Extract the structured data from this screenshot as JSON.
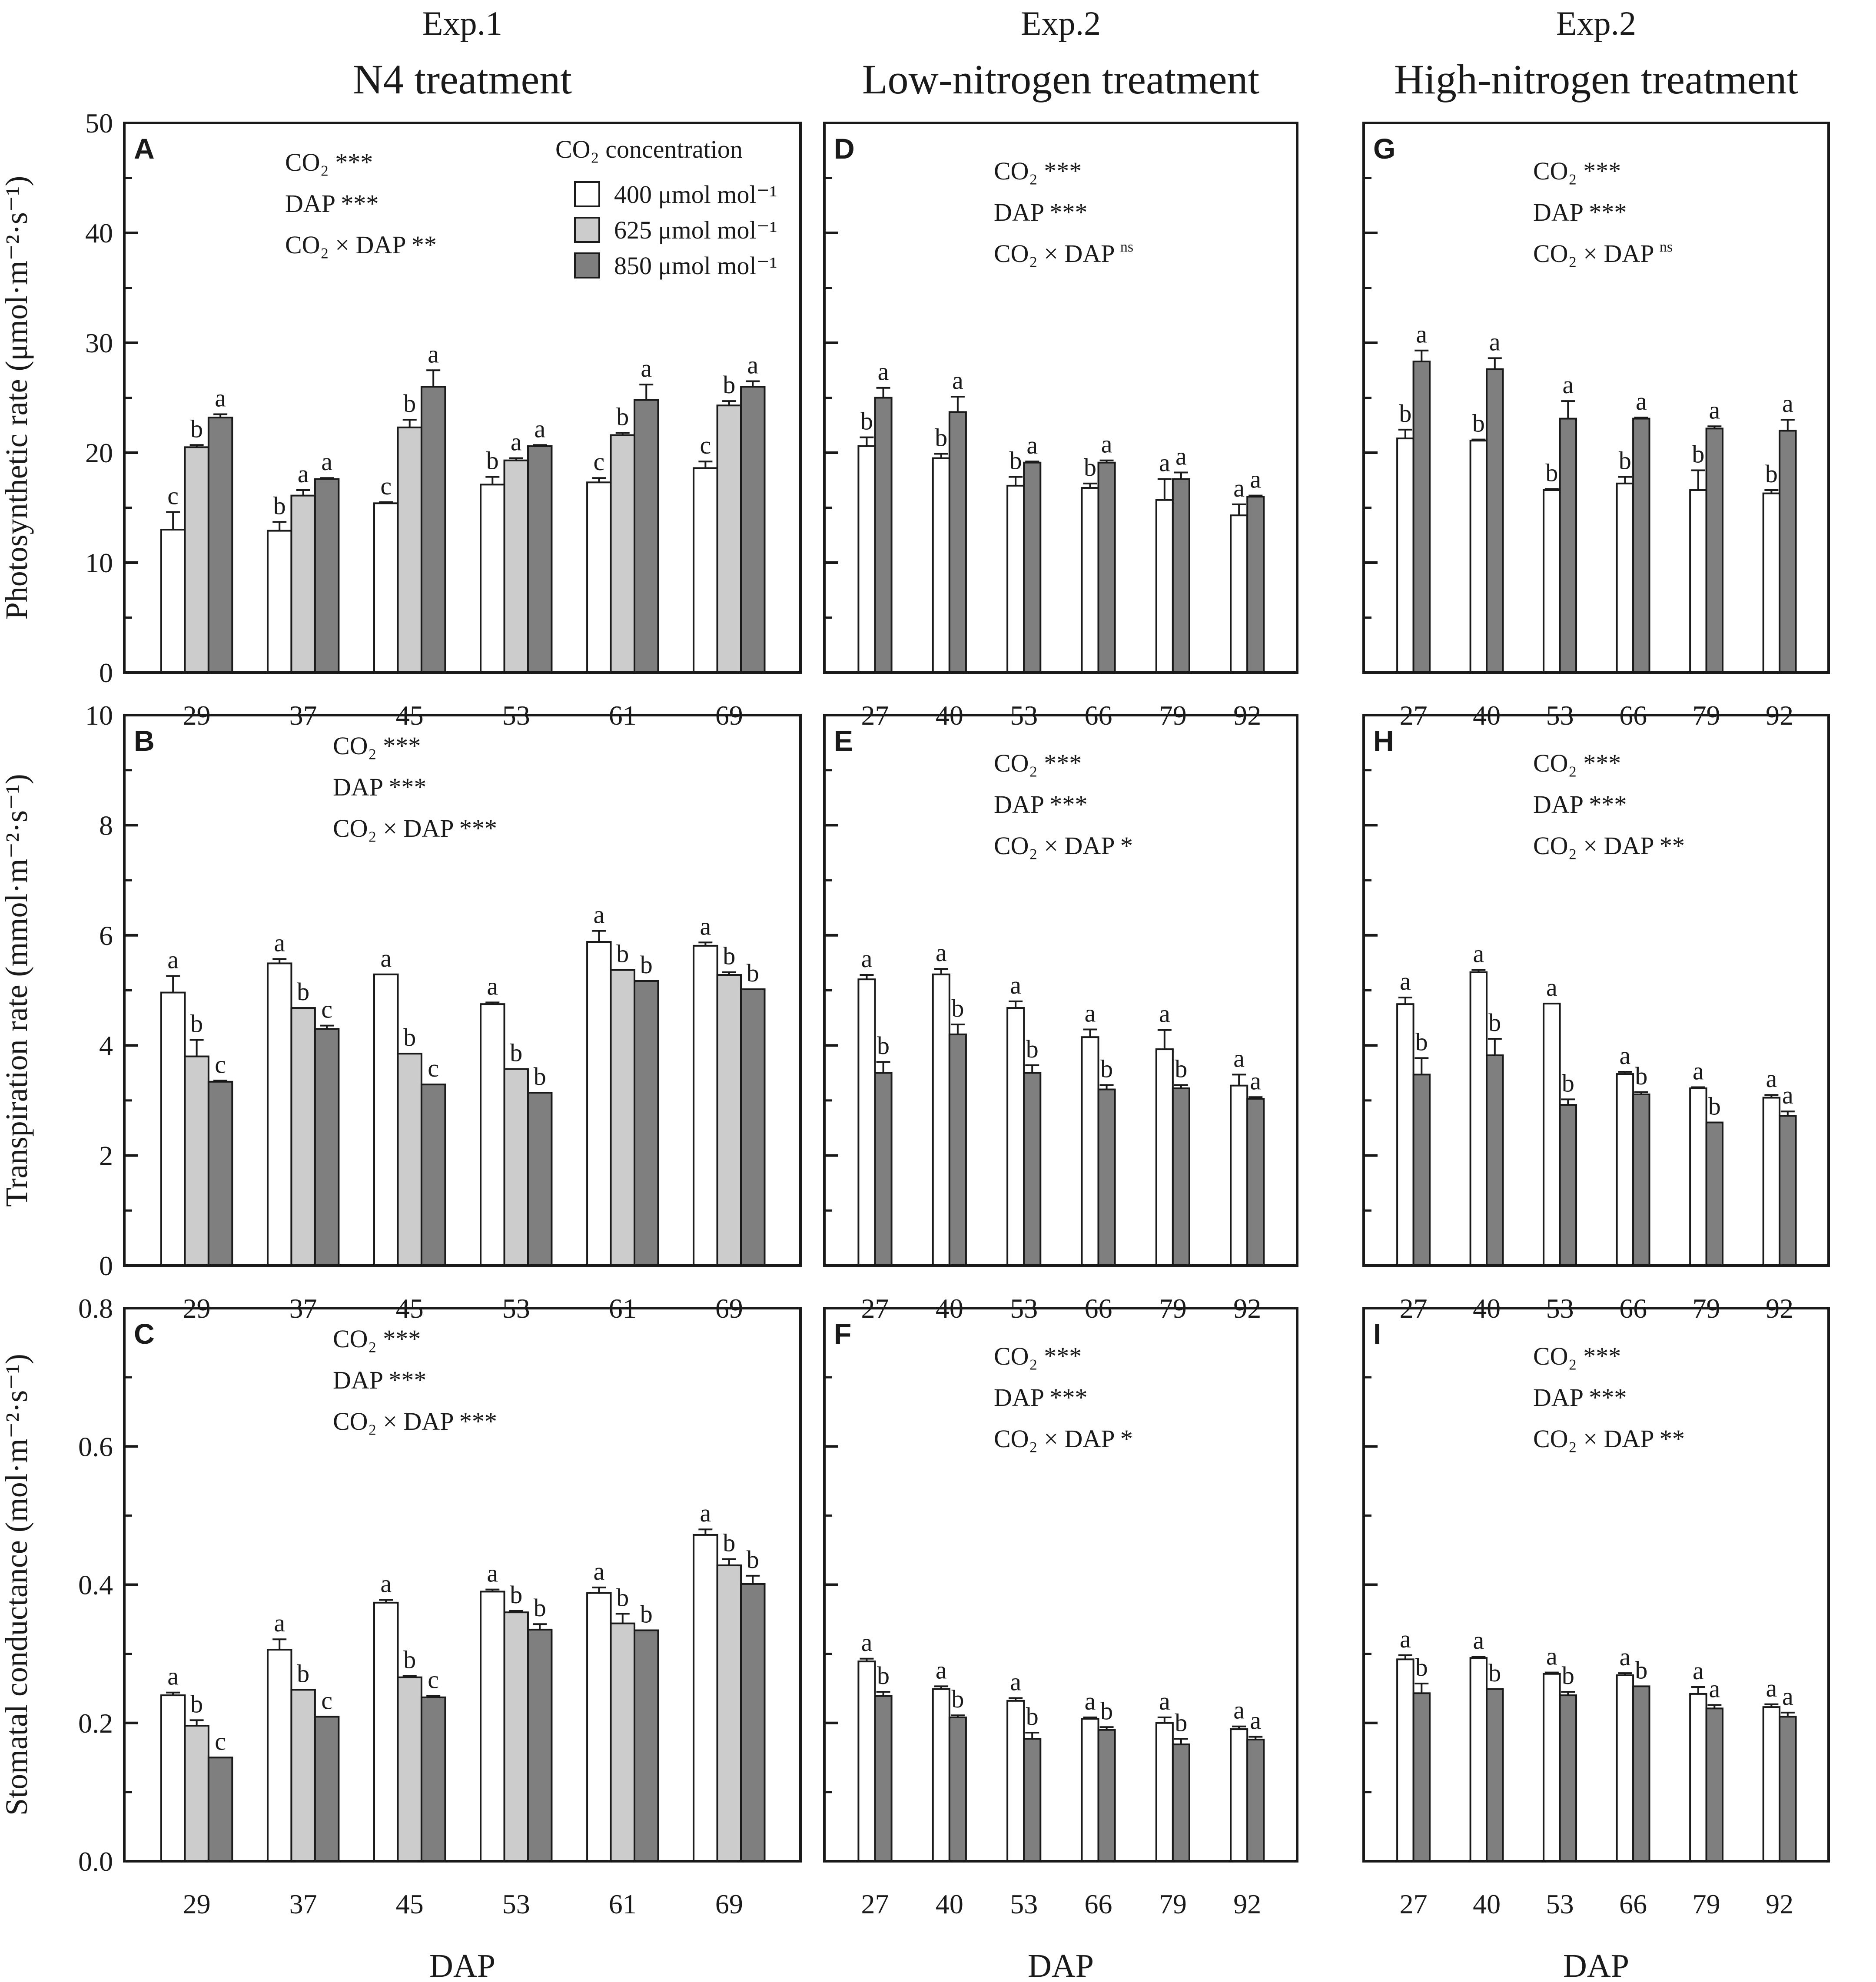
{
  "legend": {
    "title": "CO₂ concentration",
    "entries": [
      {
        "label": "400 μmol mol⁻¹",
        "color": "#ffffff"
      },
      {
        "label": "625 μmol mol⁻¹",
        "color": "#cccccc"
      },
      {
        "label": "850 μmol mol⁻¹",
        "color": "#7f7f7f"
      }
    ]
  },
  "columns": [
    {
      "exp": "Exp.1",
      "treatment": "N4 treatment",
      "xlabel": "DAP"
    },
    {
      "exp": "Exp.2",
      "treatment": "Low-nitrogen treatment",
      "xlabel": "DAP"
    },
    {
      "exp": "Exp.2",
      "treatment": "High-nitrogen treatment",
      "xlabel": "DAP"
    }
  ],
  "rows": [
    {
      "ylabel": "Photosynthetic rate (μmol·m⁻²·s⁻¹)",
      "ylim": [
        0,
        50
      ],
      "ticks": [
        "0",
        "10",
        "20",
        "30",
        "40",
        "50"
      ]
    },
    {
      "ylabel": "Transpiration rate (mmol·m⁻²·s⁻¹)",
      "ylim": [
        0,
        10
      ],
      "ticks": [
        "0",
        "2",
        "4",
        "6",
        "8",
        "10"
      ]
    },
    {
      "ylabel": "Stomatal conductance (mol·m⁻²·s⁻¹)",
      "ylim": [
        0,
        0.8
      ],
      "ticks": [
        "0.0",
        "0.2",
        "0.4",
        "0.6",
        "0.8"
      ]
    }
  ],
  "chart_data": [
    {
      "type": "bar",
      "panel": "A",
      "categories": [
        "29",
        "37",
        "45",
        "53",
        "61",
        "69"
      ],
      "ylim": [
        0,
        50
      ],
      "stats": [
        {
          "term": "CO₂",
          "sig": "***"
        },
        {
          "term": "DAP",
          "sig": "***"
        },
        {
          "term": "CO₂ × DAP",
          "sig": "**"
        }
      ],
      "series": [
        {
          "name": "400 μmol mol⁻¹",
          "values": [
            13.0,
            12.9,
            15.4,
            17.1,
            17.3,
            18.6
          ],
          "errors": [
            1.6,
            0.8,
            0.1,
            0.7,
            0.4,
            0.6
          ],
          "letters": [
            "c",
            "b",
            "c",
            "b",
            "c",
            "c"
          ]
        },
        {
          "name": "625 μmol mol⁻¹",
          "values": [
            20.5,
            16.1,
            22.3,
            19.3,
            21.6,
            24.3
          ],
          "errors": [
            0.2,
            0.5,
            0.7,
            0.2,
            0.2,
            0.4
          ],
          "letters": [
            "b",
            "a",
            "b",
            "a",
            "b",
            "b"
          ]
        },
        {
          "name": "850 μmol mol⁻¹",
          "values": [
            23.2,
            17.6,
            26.0,
            20.6,
            24.8,
            26.0
          ],
          "errors": [
            0.3,
            0.1,
            1.5,
            0.1,
            1.4,
            0.5
          ],
          "letters": [
            "a",
            "a",
            "a",
            "a",
            "a",
            "a"
          ]
        }
      ]
    },
    {
      "type": "bar",
      "panel": "B",
      "categories": [
        "29",
        "37",
        "45",
        "53",
        "61",
        "69"
      ],
      "ylim": [
        0,
        10
      ],
      "stats": [
        {
          "term": "CO₂",
          "sig": "***"
        },
        {
          "term": "DAP",
          "sig": "***"
        },
        {
          "term": "CO₂ × DAP",
          "sig": "***"
        }
      ],
      "series": [
        {
          "name": "400 μmol mol⁻¹",
          "values": [
            4.96,
            5.49,
            5.29,
            4.75,
            5.88,
            5.81
          ],
          "errors": [
            0.3,
            0.08,
            0.0,
            0.03,
            0.2,
            0.06
          ],
          "letters": [
            "a",
            "a",
            "a",
            "a",
            "a",
            "a"
          ]
        },
        {
          "name": "625 μmol mol⁻¹",
          "values": [
            3.8,
            4.68,
            3.85,
            3.57,
            5.37,
            5.28
          ],
          "errors": [
            0.3,
            0.0,
            0.0,
            0.0,
            0.0,
            0.05
          ],
          "letters": [
            "b",
            "b",
            "b",
            "b",
            "b",
            "b"
          ]
        },
        {
          "name": "850 μmol mol⁻¹",
          "values": [
            3.34,
            4.3,
            3.29,
            3.14,
            5.17,
            5.02
          ],
          "errors": [
            0.02,
            0.06,
            0.0,
            0.0,
            0.0,
            0.0
          ],
          "letters": [
            "c",
            "c",
            "c",
            "b",
            "b",
            "b"
          ]
        }
      ]
    },
    {
      "type": "bar",
      "panel": "C",
      "categories": [
        "29",
        "37",
        "45",
        "53",
        "61",
        "69"
      ],
      "ylim": [
        0,
        0.8
      ],
      "stats": [
        {
          "term": "CO₂",
          "sig": "***"
        },
        {
          "term": "DAP",
          "sig": "***"
        },
        {
          "term": "CO₂ × DAP",
          "sig": "***"
        }
      ],
      "series": [
        {
          "name": "400 μmol mol⁻¹",
          "values": [
            0.24,
            0.306,
            0.374,
            0.39,
            0.388,
            0.472
          ],
          "errors": [
            0.004,
            0.015,
            0.004,
            0.003,
            0.008,
            0.008
          ],
          "letters": [
            "a",
            "a",
            "a",
            "a",
            "a",
            "a"
          ]
        },
        {
          "name": "625 μmol mol⁻¹",
          "values": [
            0.196,
            0.248,
            0.266,
            0.36,
            0.344,
            0.428
          ],
          "errors": [
            0.008,
            0.0,
            0.002,
            0.002,
            0.014,
            0.009
          ],
          "letters": [
            "b",
            "b",
            "b",
            "b",
            "b",
            "b"
          ]
        },
        {
          "name": "850 μmol mol⁻¹",
          "values": [
            0.15,
            0.209,
            0.237,
            0.335,
            0.334,
            0.401
          ],
          "errors": [
            0.0,
            0.0,
            0.002,
            0.008,
            0.0,
            0.012
          ],
          "letters": [
            "c",
            "c",
            "c",
            "b",
            "b",
            "b"
          ]
        }
      ]
    },
    {
      "type": "bar",
      "panel": "D",
      "categories": [
        "27",
        "40",
        "53",
        "66",
        "79",
        "92"
      ],
      "ylim": [
        0,
        50
      ],
      "stats": [
        {
          "term": "CO₂",
          "sig": "***"
        },
        {
          "term": "DAP",
          "sig": "***"
        },
        {
          "term": "CO₂ × DAP",
          "sig": "ns"
        }
      ],
      "series": [
        {
          "name": "400 μmol mol⁻¹",
          "values": [
            20.6,
            19.5,
            17.0,
            16.8,
            15.7,
            14.3
          ],
          "errors": [
            0.8,
            0.4,
            0.8,
            0.4,
            1.9,
            1.0
          ],
          "letters": [
            "b",
            "b",
            "b",
            "b",
            "a",
            "a"
          ]
        },
        {
          "name": "850 μmol mol⁻¹",
          "values": [
            25.0,
            23.7,
            19.1,
            19.1,
            17.6,
            16.0
          ],
          "errors": [
            0.9,
            1.4,
            0.1,
            0.2,
            0.6,
            0.1
          ],
          "letters": [
            "a",
            "a",
            "a",
            "a",
            "a",
            "a"
          ]
        }
      ]
    },
    {
      "type": "bar",
      "panel": "E",
      "categories": [
        "27",
        "40",
        "53",
        "66",
        "79",
        "92"
      ],
      "ylim": [
        0,
        10
      ],
      "stats": [
        {
          "term": "CO₂",
          "sig": "***"
        },
        {
          "term": "DAP",
          "sig": "***"
        },
        {
          "term": "CO₂ × DAP",
          "sig": "*"
        }
      ],
      "series": [
        {
          "name": "400 μmol mol⁻¹",
          "values": [
            5.2,
            5.29,
            4.68,
            4.15,
            3.93,
            3.27
          ],
          "errors": [
            0.08,
            0.1,
            0.12,
            0.14,
            0.35,
            0.2
          ],
          "letters": [
            "a",
            "a",
            "a",
            "a",
            "a",
            "a"
          ]
        },
        {
          "name": "850 μmol mol⁻¹",
          "values": [
            3.5,
            4.2,
            3.5,
            3.2,
            3.22,
            3.03
          ],
          "errors": [
            0.2,
            0.18,
            0.14,
            0.08,
            0.06,
            0.03
          ],
          "letters": [
            "b",
            "b",
            "b",
            "b",
            "b",
            "a"
          ]
        }
      ]
    },
    {
      "type": "bar",
      "panel": "F",
      "categories": [
        "27",
        "40",
        "53",
        "66",
        "79",
        "92"
      ],
      "ylim": [
        0,
        0.8
      ],
      "stats": [
        {
          "term": "CO₂",
          "sig": "***"
        },
        {
          "term": "DAP",
          "sig": "***"
        },
        {
          "term": "CO₂ × DAP",
          "sig": "*"
        }
      ],
      "series": [
        {
          "name": "400 μmol mol⁻¹",
          "values": [
            0.289,
            0.249,
            0.232,
            0.206,
            0.2,
            0.191
          ],
          "errors": [
            0.004,
            0.004,
            0.004,
            0.002,
            0.008,
            0.004
          ],
          "letters": [
            "a",
            "a",
            "a",
            "a",
            "a",
            "a"
          ]
        },
        {
          "name": "850 μmol mol⁻¹",
          "values": [
            0.239,
            0.208,
            0.177,
            0.19,
            0.169,
            0.176
          ],
          "errors": [
            0.006,
            0.003,
            0.009,
            0.004,
            0.008,
            0.004
          ],
          "letters": [
            "b",
            "b",
            "b",
            "b",
            "b",
            "a"
          ]
        }
      ]
    },
    {
      "type": "bar",
      "panel": "G",
      "categories": [
        "27",
        "40",
        "53",
        "66",
        "79",
        "92"
      ],
      "ylim": [
        0,
        50
      ],
      "stats": [
        {
          "term": "CO₂",
          "sig": "***"
        },
        {
          "term": "DAP",
          "sig": "***"
        },
        {
          "term": "CO₂ × DAP",
          "sig": "ns"
        }
      ],
      "series": [
        {
          "name": "400 μmol mol⁻¹",
          "values": [
            21.3,
            21.1,
            16.6,
            17.2,
            16.6,
            16.3
          ],
          "errors": [
            0.8,
            0.1,
            0.1,
            0.6,
            1.8,
            0.3
          ],
          "letters": [
            "b",
            "b",
            "b",
            "b",
            "b",
            "b"
          ]
        },
        {
          "name": "850 μmol mol⁻¹",
          "values": [
            28.3,
            27.6,
            23.1,
            23.1,
            22.2,
            22.0
          ],
          "errors": [
            1.0,
            1.0,
            1.6,
            0.1,
            0.2,
            1.0
          ],
          "letters": [
            "a",
            "a",
            "a",
            "a",
            "a",
            "a"
          ]
        }
      ]
    },
    {
      "type": "bar",
      "panel": "H",
      "categories": [
        "27",
        "40",
        "53",
        "66",
        "79",
        "92"
      ],
      "ylim": [
        0,
        10
      ],
      "stats": [
        {
          "term": "CO₂",
          "sig": "***"
        },
        {
          "term": "DAP",
          "sig": "***"
        },
        {
          "term": "CO₂ × DAP",
          "sig": "**"
        }
      ],
      "series": [
        {
          "name": "400 μmol mol⁻¹",
          "values": [
            4.75,
            5.33,
            4.76,
            3.48,
            3.22,
            3.05
          ],
          "errors": [
            0.12,
            0.04,
            0.0,
            0.04,
            0.02,
            0.05
          ],
          "letters": [
            "a",
            "a",
            "a",
            "a",
            "a",
            "a"
          ]
        },
        {
          "name": "850 μmol mol⁻¹",
          "values": [
            3.47,
            3.82,
            2.92,
            3.11,
            2.6,
            2.72
          ],
          "errors": [
            0.3,
            0.3,
            0.1,
            0.04,
            0.0,
            0.08
          ],
          "letters": [
            "b",
            "b",
            "b",
            "b",
            "b",
            "a"
          ]
        }
      ]
    },
    {
      "type": "bar",
      "panel": "I",
      "categories": [
        "27",
        "40",
        "53",
        "66",
        "79",
        "92"
      ],
      "ylim": [
        0,
        0.8
      ],
      "stats": [
        {
          "term": "CO₂",
          "sig": "***"
        },
        {
          "term": "DAP",
          "sig": "***"
        },
        {
          "term": "CO₂ × DAP",
          "sig": "**"
        }
      ],
      "series": [
        {
          "name": "400 μmol mol⁻¹",
          "values": [
            0.292,
            0.294,
            0.271,
            0.269,
            0.242,
            0.223
          ],
          "errors": [
            0.006,
            0.002,
            0.002,
            0.003,
            0.01,
            0.004
          ],
          "letters": [
            "a",
            "a",
            "a",
            "a",
            "a",
            "a"
          ]
        },
        {
          "name": "850 μmol mol⁻¹",
          "values": [
            0.243,
            0.249,
            0.24,
            0.253,
            0.221,
            0.209
          ],
          "errors": [
            0.014,
            0.0,
            0.005,
            0.0,
            0.005,
            0.006
          ],
          "letters": [
            "b",
            "b",
            "b",
            "b",
            "a",
            "a"
          ]
        }
      ]
    }
  ]
}
